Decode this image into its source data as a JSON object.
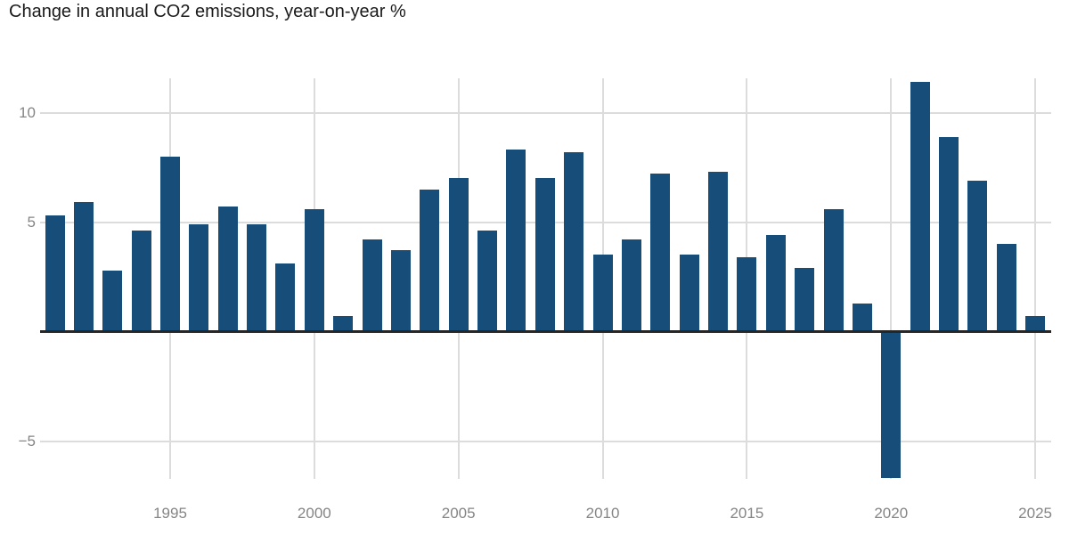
{
  "chart_data": {
    "type": "bar",
    "title": "Change in annual CO2 emissions, year-on-year %",
    "categories": [
      1991,
      1992,
      1993,
      1994,
      1995,
      1996,
      1997,
      1998,
      1999,
      2000,
      2001,
      2002,
      2003,
      2004,
      2005,
      2006,
      2007,
      2008,
      2009,
      2010,
      2011,
      2012,
      2013,
      2014,
      2015,
      2016,
      2017,
      2018,
      2019,
      2020,
      2021,
      2022,
      2023,
      2024,
      2025
    ],
    "values": [
      5.3,
      5.9,
      2.8,
      4.6,
      8.0,
      4.9,
      5.7,
      4.9,
      3.1,
      5.6,
      0.7,
      4.2,
      3.7,
      6.5,
      7.0,
      4.6,
      8.3,
      7.0,
      8.2,
      3.5,
      4.2,
      7.2,
      3.5,
      7.3,
      3.4,
      4.4,
      2.9,
      5.6,
      1.3,
      -6.7,
      11.4,
      8.9,
      6.9,
      4.0,
      0.7
    ],
    "xlabel": "",
    "ylabel": "",
    "ylim": [
      -6.7,
      11.55
    ],
    "x_ticks": [
      "1995",
      "2000",
      "2005",
      "2010",
      "2015",
      "2020",
      "2025"
    ],
    "y_ticks": [
      10,
      5,
      -5
    ],
    "y_tick_labels": [
      "10",
      "5",
      "−5"
    ],
    "grid": true,
    "legend": "none",
    "bar_color": "#174e79",
    "gridline_color": "#dcdcdc",
    "axis_label_color": "#858585",
    "baseline_color": "#262626",
    "title_color": "#1a1a1a"
  }
}
